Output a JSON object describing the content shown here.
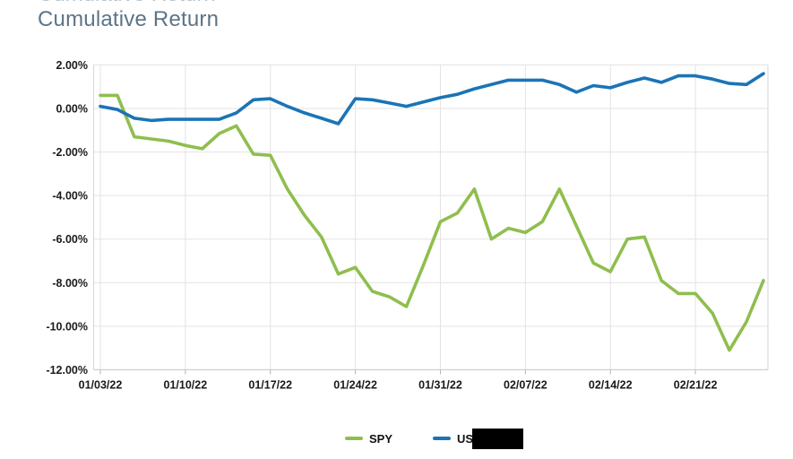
{
  "title": "Cumulative Return",
  "colors": {
    "spy_line": "#8fbe4e",
    "benchmark_line": "#1b74b6",
    "title_text": "#5d7486",
    "tick_text": "#1a1a1a",
    "gridline": "#e3e3e3",
    "redaction_box": "#000000"
  },
  "legend": {
    "items": [
      {
        "label": "SPY",
        "redacted": false
      },
      {
        "label": "US",
        "redacted": true
      }
    ]
  },
  "chart_data": {
    "type": "line",
    "title": "Cumulative Return",
    "xlabel": "",
    "ylabel": "",
    "grid": true,
    "legend_position": "bottom",
    "ylim": [
      -12,
      2
    ],
    "y_tick_values": [
      2,
      0,
      -2,
      -4,
      -6,
      -8,
      -10,
      -12
    ],
    "y_tick_labels": [
      "2.00%",
      "0.00%",
      "-2.00%",
      "-4.00%",
      "-6.00%",
      "-8.00%",
      "-10.00%",
      "-12.00%"
    ],
    "x_ticks": [
      {
        "index": 0,
        "label": "01/03/22"
      },
      {
        "index": 5,
        "label": "01/10/22"
      },
      {
        "index": 10,
        "label": "01/17/22"
      },
      {
        "index": 15,
        "label": "01/24/22"
      },
      {
        "index": 20,
        "label": "01/31/22"
      },
      {
        "index": 25,
        "label": "02/07/22"
      },
      {
        "index": 30,
        "label": "02/14/22"
      },
      {
        "index": 35,
        "label": "02/21/22"
      }
    ],
    "x_unit": "daily points, one per weekday",
    "series": [
      {
        "name": "SPY",
        "color": "#8fbe4e",
        "values": [
          0.6,
          0.6,
          -1.3,
          -1.4,
          -1.5,
          -1.7,
          -1.85,
          -1.15,
          -0.8,
          -2.1,
          -2.15,
          -3.7,
          -4.9,
          -5.9,
          -7.6,
          -7.3,
          -8.4,
          -8.65,
          -9.1,
          -7.2,
          -5.2,
          -4.8,
          -3.7,
          -6.0,
          -5.5,
          -5.7,
          -5.2,
          -3.7,
          -5.4,
          -7.1,
          -7.5,
          -6.0,
          -5.9,
          -7.9,
          -8.5,
          -8.5,
          -9.4,
          -11.1,
          -9.8,
          -7.9
        ]
      },
      {
        "name": "US (label redacted)",
        "color": "#1b74b6",
        "values": [
          0.1,
          -0.05,
          -0.45,
          -0.55,
          -0.5,
          -0.5,
          -0.5,
          -0.5,
          -0.2,
          0.4,
          0.45,
          0.1,
          -0.2,
          -0.45,
          -0.7,
          0.45,
          0.4,
          0.25,
          0.1,
          0.3,
          0.5,
          0.65,
          0.9,
          1.1,
          1.3,
          1.3,
          1.3,
          1.1,
          0.75,
          1.05,
          0.95,
          1.2,
          1.4,
          1.2,
          1.5,
          1.5,
          1.35,
          1.15,
          1.1,
          1.6
        ]
      }
    ]
  }
}
